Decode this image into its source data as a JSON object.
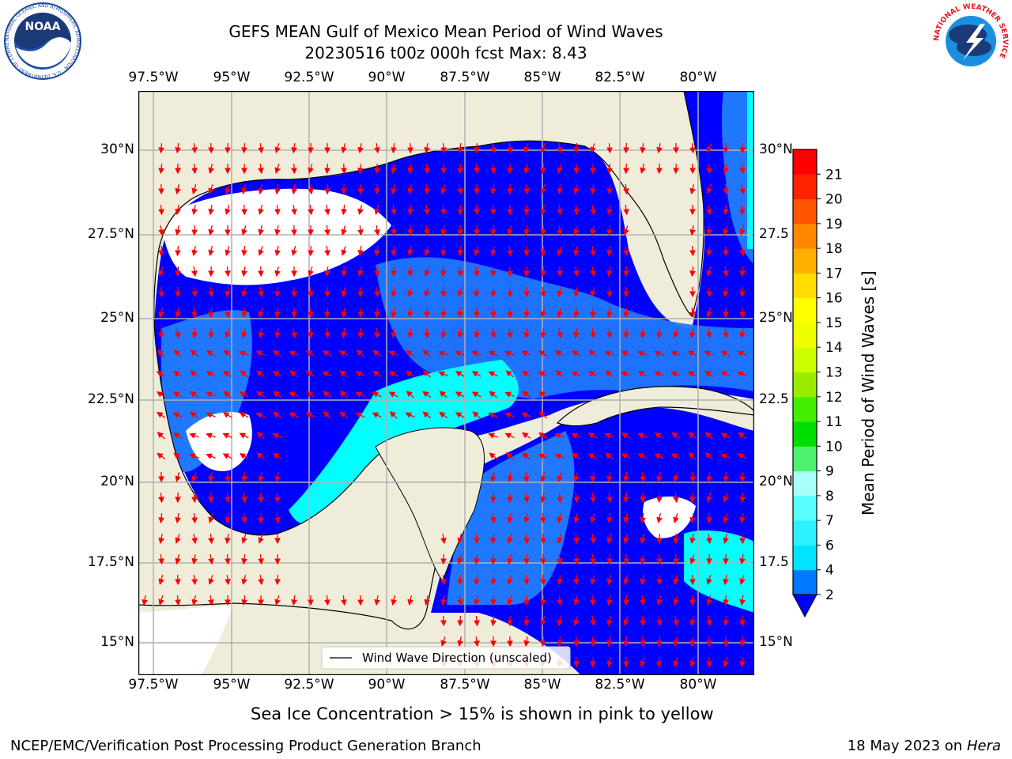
{
  "title_line1": "GEFS MEAN Gulf of Mexico Mean Period of Wind Waves",
  "title_line2": "20230516 t00z 000h fcst   Max: 8.43",
  "lon_labels": [
    "97.5°W",
    "95°W",
    "92.5°W",
    "90°W",
    "87.5°W",
    "85°W",
    "82.5°W",
    "80°W"
  ],
  "lat_labels_left": [
    "30°N",
    "27.5°N",
    "25°N",
    "22.5°N",
    "20°N",
    "17.5°N",
    "15°N"
  ],
  "lat_labels_right": [
    "30°N",
    "27.5",
    "25°N",
    "22.5",
    "20°N",
    "17.5",
    "15°N"
  ],
  "legend_label": "Wind Wave Direction (unscaled)",
  "colorbar": {
    "label": "Mean Period of Wind Waves [s]",
    "ticks": [
      "2",
      "4",
      "6",
      "7",
      "8",
      "9",
      "10",
      "11",
      "12",
      "13",
      "14",
      "15",
      "16",
      "17",
      "18",
      "19",
      "20",
      "21"
    ],
    "colors": [
      "#0078ff",
      "#00e4ff",
      "#2cf2ff",
      "#58ffff",
      "#a8fff8",
      "#50f070",
      "#00dd00",
      "#44ee00",
      "#99ee00",
      "#ccff00",
      "#eeff00",
      "#ffff00",
      "#ffdd00",
      "#ffb000",
      "#ff8800",
      "#ff5500",
      "#ff2200",
      "#ff0000"
    ],
    "under_color": "#0000ff"
  },
  "map_colors": {
    "land": "#efedda",
    "ocean_low": "#0000ff",
    "ocean_mid": "#1f78ff",
    "ocean_high": "#00ffff",
    "arrow": "#ff0000",
    "grid": "#b0b0b0"
  },
  "sea_ice_note": "Sea Ice Concentration > 15% is shown in pink to yellow",
  "footer_left": "NCEP/EMC/Verification Post Processing Product Generation Branch",
  "footer_date": "18 May 2023 on",
  "footer_host": "Hera",
  "noaa_logo_text": "NOAA",
  "noaa_ring_text": "NATIONAL OCEANIC AND ATMOSPHERIC ADMINISTRATION · U.S. DEPARTMENT OF COMMERCE",
  "nws_ring_text": "NATIONAL WEATHER SERVICE"
}
